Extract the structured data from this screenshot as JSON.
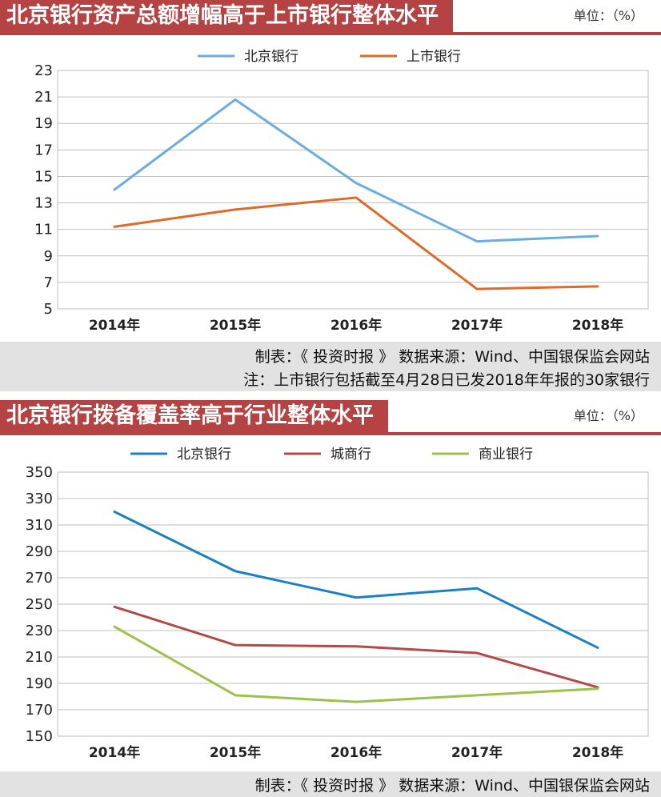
{
  "chart_data": [
    {
      "type": "line",
      "title": "北京银行资产总额增幅高于上市银行整体水平",
      "unit": "单位：（%）",
      "categories": [
        "2014年",
        "2015年",
        "2016年",
        "2017年",
        "2018年"
      ],
      "ylim": [
        5,
        23
      ],
      "yticks": [
        5,
        7,
        9,
        11,
        13,
        15,
        17,
        19,
        21,
        23
      ],
      "legend_position": "top-center",
      "series": [
        {
          "name": "北京银行",
          "color": "#6aaee0",
          "values": [
            14.0,
            20.8,
            14.5,
            10.1,
            10.5
          ]
        },
        {
          "name": "上市银行",
          "color": "#e06a2a",
          "values": [
            11.2,
            12.5,
            13.4,
            6.5,
            6.7
          ]
        }
      ],
      "source": "制表：《 投资时报 》 数据来源：Wind、中国银保监会网站",
      "note": "注：上市银行包括截至4月28日已发2018年年报的30家银行"
    },
    {
      "type": "line",
      "title": "北京银行拨备覆盖率高于行业整体水平",
      "unit": "单位：（%）",
      "categories": [
        "2014年",
        "2015年",
        "2016年",
        "2017年",
        "2018年"
      ],
      "ylim": [
        150,
        350
      ],
      "yticks": [
        150,
        170,
        190,
        210,
        230,
        250,
        270,
        290,
        310,
        330,
        350
      ],
      "legend_position": "top-center",
      "series": [
        {
          "name": "北京银行",
          "color": "#1a82c4",
          "values": [
            320,
            275,
            255,
            262,
            217
          ]
        },
        {
          "name": "城商行",
          "color": "#b24a48",
          "values": [
            248,
            219,
            218,
            213,
            187
          ]
        },
        {
          "name": "商业银行",
          "color": "#9bc24a",
          "values": [
            233,
            181,
            176,
            181,
            186
          ]
        }
      ],
      "source": "制表：《 投资时报 》 数据来源：Wind、中国银保监会网站"
    }
  ]
}
